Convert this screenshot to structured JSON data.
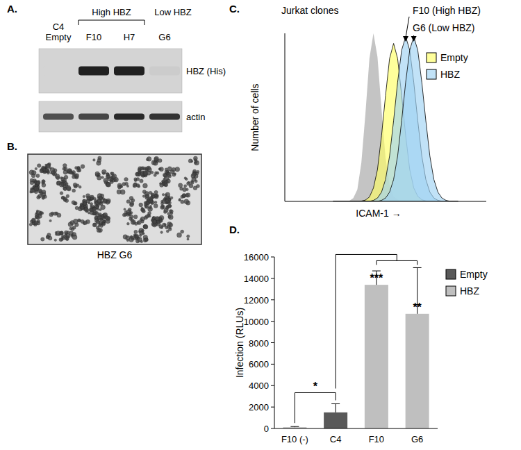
{
  "panels": [
    {
      "label": "A.",
      "type": "blot",
      "groups": [
        {
          "text": "High HBZ",
          "lanes": [
            1,
            2
          ]
        },
        {
          "text": "Low HBZ",
          "lanes": [
            3
          ]
        }
      ],
      "lanes": [
        [
          "C4",
          "Empty"
        ],
        [
          "F10"
        ],
        [
          "H7"
        ],
        [
          "G6"
        ]
      ],
      "rows": [
        {
          "label": "HBZ (His)",
          "intensity": [
            0,
            0.95,
            0.95,
            0.04
          ]
        },
        {
          "label": "actin",
          "intensity": [
            0.7,
            0.75,
            0.9,
            0.85
          ]
        }
      ]
    },
    {
      "label": "B.",
      "type": "image",
      "caption": "HBZ G6"
    },
    {
      "label": "C."
    },
    {
      "label": "D."
    }
  ],
  "chart_data": [
    {
      "type": "area",
      "title": "Jurkat clones",
      "x_label": "ICAM-1 →",
      "y_label": "Number of cells",
      "x": [
        24,
        26,
        28,
        30,
        32,
        34,
        36,
        38,
        40,
        42,
        44,
        46,
        48,
        50,
        52,
        54,
        56,
        58,
        60,
        62,
        64,
        66,
        68,
        70,
        72,
        74,
        76,
        78,
        80,
        82,
        84,
        86
      ],
      "series": [
        {
          "color": "#c4c4c4",
          "values": [
            0,
            0,
            0,
            0,
            0.3,
            2,
            7,
            23,
            52,
            85,
            100,
            86,
            55,
            26,
            10,
            3,
            1,
            0,
            0,
            0,
            0,
            0,
            0,
            0,
            0,
            0,
            0,
            0,
            0,
            0,
            0,
            0
          ]
        },
        {
          "name": "Empty",
          "color": "#ffff66",
          "values": [
            0,
            0,
            0,
            0,
            0,
            0,
            0,
            0.2,
            0.8,
            2.6,
            8,
            19,
            39,
            63,
            85,
            94,
            85,
            63,
            39,
            19,
            8,
            3,
            1,
            0.3,
            0,
            0,
            0,
            0,
            0,
            0,
            0,
            0
          ]
        },
        {
          "name": "HBZ",
          "color": "#9fd3f2",
          "values": [
            0,
            0,
            0,
            0,
            0,
            0,
            0,
            0,
            0,
            0,
            0.6,
            2,
            5.5,
            13,
            27,
            48,
            71,
            90,
            98,
            90,
            71,
            48,
            27,
            13,
            5.5,
            2,
            0.6,
            0.1,
            0,
            0,
            0,
            0
          ]
        },
        {
          "name": "HBZ",
          "color": "#9fd3f2",
          "values": [
            0,
            0,
            0,
            0,
            0,
            0,
            0,
            0,
            0,
            0,
            0,
            0,
            0.6,
            2,
            5.5,
            13,
            27,
            48,
            71,
            90,
            98,
            90,
            71,
            48,
            27,
            13,
            5.5,
            2,
            0.6,
            0.1,
            0,
            0
          ]
        }
      ],
      "annotations": [
        {
          "text": "F10 (High HBZ)",
          "x": 60
        },
        {
          "text": "G6 (Low HBZ)",
          "x": 64
        }
      ],
      "xlim": [
        0,
        100
      ],
      "ylim": [
        0,
        100
      ],
      "tick_labels": false,
      "legend": "upper right"
    },
    {
      "type": "bar",
      "y_label": "Infection (RLUs)",
      "categories": [
        "F10 (-)",
        "C4",
        "F10",
        "G6"
      ],
      "series": [
        {
          "name": "Empty",
          "color": "#595959",
          "values": [
            null,
            1500,
            null,
            null
          ],
          "errors": [
            null,
            800,
            null,
            null
          ]
        },
        {
          "name": "HBZ",
          "color": "#bfbfbf",
          "values": [
            120,
            null,
            13400,
            10700
          ],
          "errors": [
            60,
            null,
            1300,
            4300
          ]
        }
      ],
      "ylim": [
        0,
        16000
      ],
      "yticks": [
        0,
        2000,
        4000,
        6000,
        8000,
        10000,
        12000,
        14000,
        16000
      ],
      "legend": "right",
      "annotations": [
        {
          "text": "*",
          "between": [
            0,
            1
          ]
        },
        {
          "between": [
            1,
            2,
            3
          ]
        },
        {
          "text": "***",
          "at": 2
        },
        {
          "text": "**",
          "at": 3
        }
      ]
    }
  ]
}
